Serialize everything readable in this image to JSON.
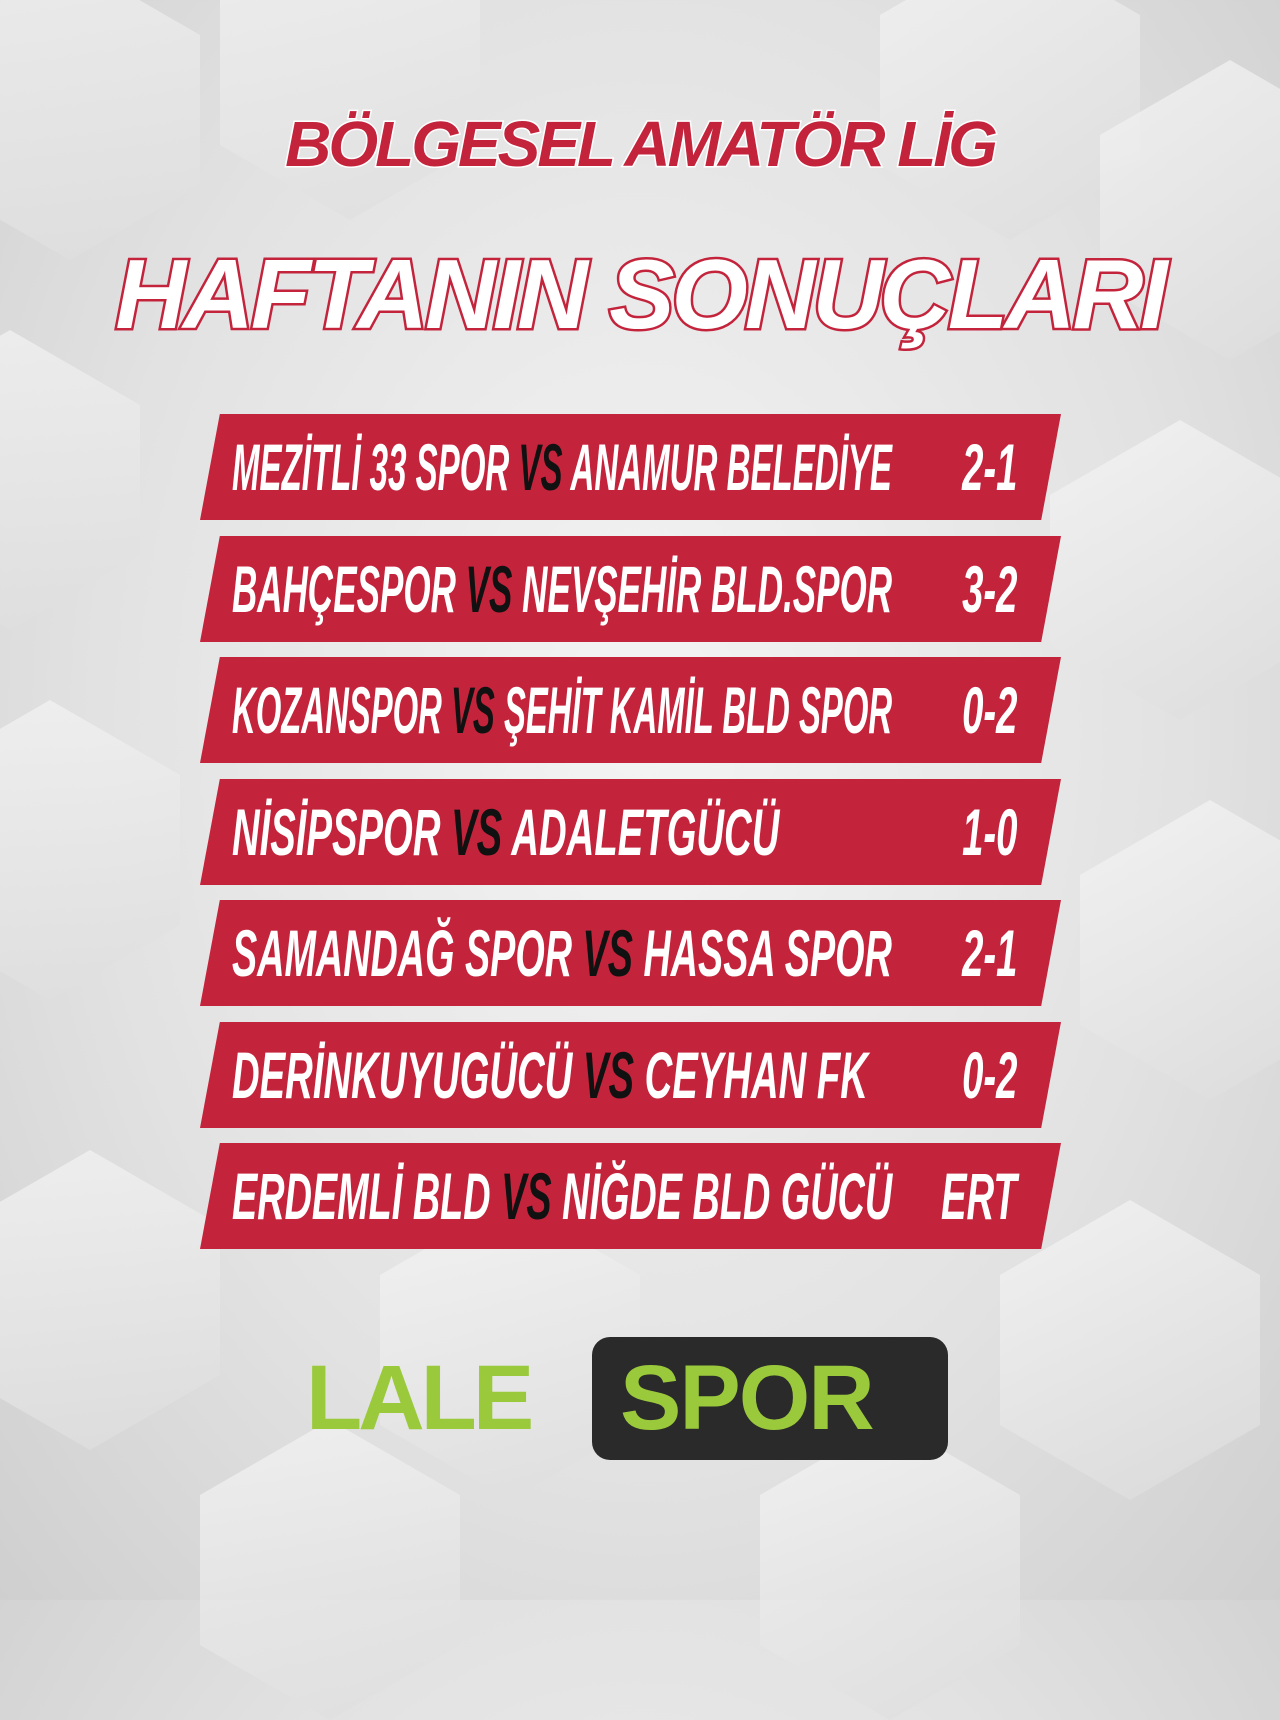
{
  "header": {
    "line1": "BÖLGESEL AMATÖR LİG",
    "line2": "HAFTANIN SONUÇLARI"
  },
  "matches": [
    {
      "home": "MEZİTLİ 33 SPOR",
      "vs": "VS",
      "away": "ANAMUR BELEDİYE",
      "score": "2-1"
    },
    {
      "home": "BAHÇESPOR",
      "vs": "VS",
      "away": "NEVŞEHİR BLD.SPOR",
      "score": "3-2"
    },
    {
      "home": "KOZANSPOR",
      "vs": "VS",
      "away": "ŞEHİT KAMİL BLD SPOR",
      "score": "0-2"
    },
    {
      "home": "NİSİPSPOR",
      "vs": "VS",
      "away": "ADALETGÜCÜ",
      "score": "1-0"
    },
    {
      "home": "SAMANDAĞ SPOR",
      "vs": "VS",
      "away": "HASSA SPOR",
      "score": "2-1"
    },
    {
      "home": "DERİNKUYUGÜCÜ",
      "vs": "VS",
      "away": "CEYHAN FK",
      "score": "0-2"
    },
    {
      "home": "ERDEMLİ BLD",
      "vs": "VS",
      "away": "NİĞDE BLD GÜCÜ",
      "score": "ERT"
    }
  ],
  "logo": {
    "part1": "LALE",
    "part2": "SPOR"
  },
  "colors": {
    "banner": "#c3243c",
    "logo_green": "#9bc93c",
    "logo_dark": "#2a2a2a"
  }
}
